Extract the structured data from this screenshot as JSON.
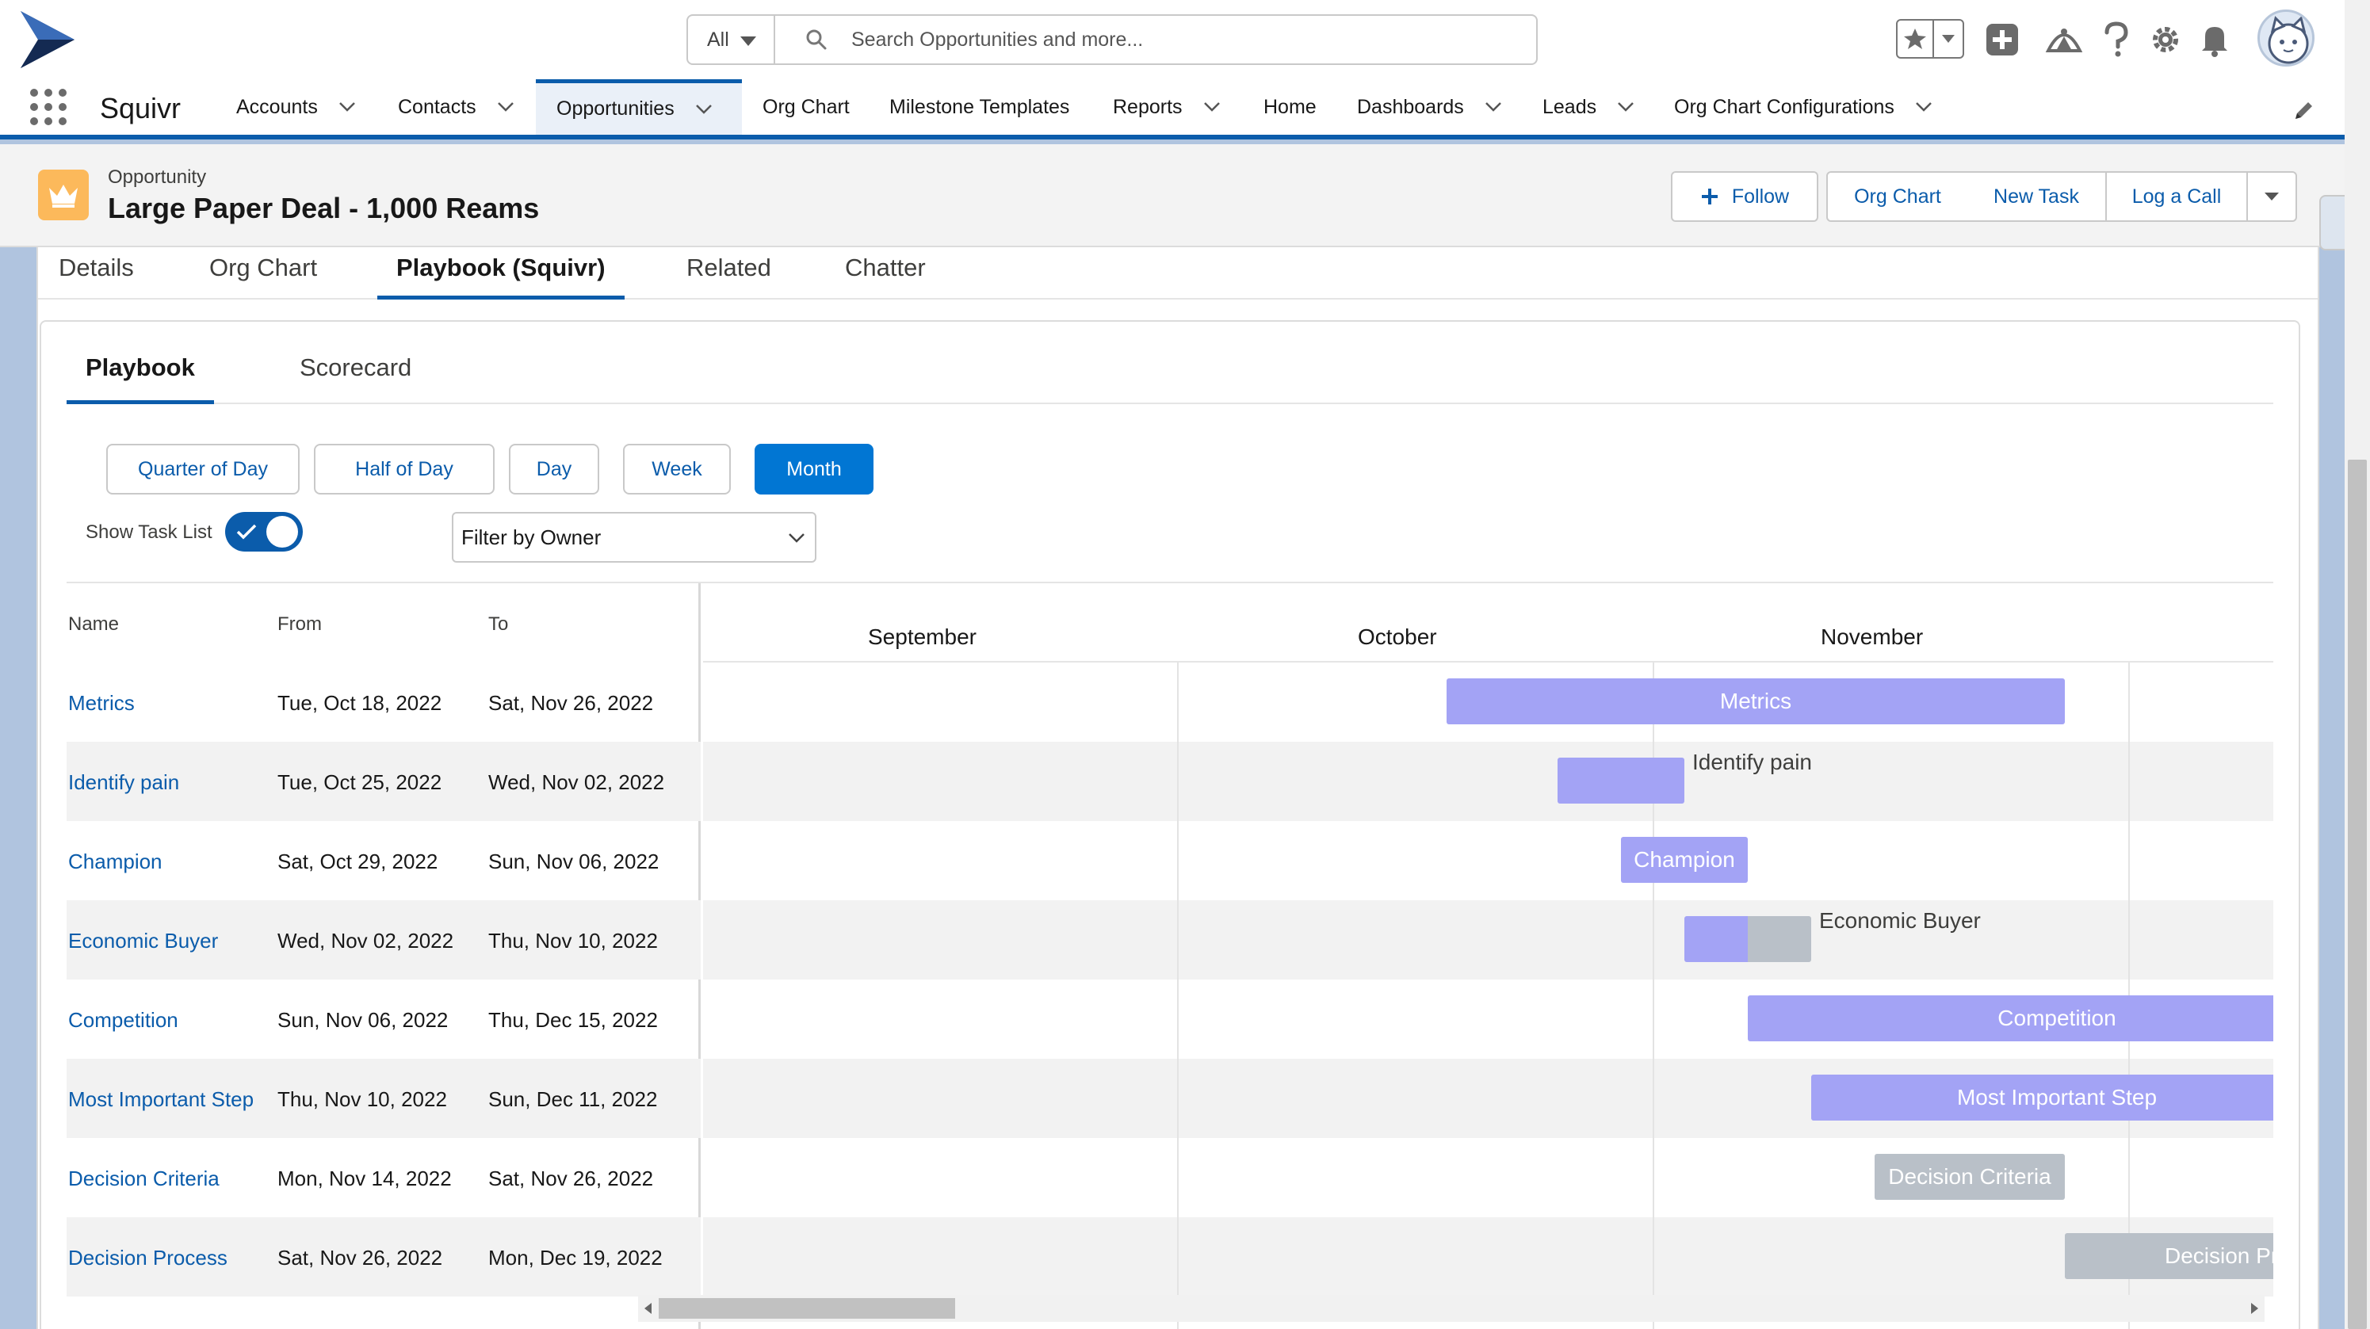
{
  "search": {
    "scope": "All",
    "placeholder": "Search Opportunities and more..."
  },
  "header_icons": [
    "star-icon",
    "add-icon",
    "trailhead-icon",
    "help-icon",
    "setup-gear-icon",
    "notification-bell-icon"
  ],
  "app": {
    "name": "Squivr",
    "nav": [
      {
        "label": "Accounts",
        "dropdown": true
      },
      {
        "label": "Contacts",
        "dropdown": true
      },
      {
        "label": "Opportunities",
        "dropdown": true,
        "active": true
      },
      {
        "label": "Org Chart",
        "dropdown": false
      },
      {
        "label": "Milestone Templates",
        "dropdown": false
      },
      {
        "label": "Reports",
        "dropdown": true
      },
      {
        "label": "Home",
        "dropdown": false
      },
      {
        "label": "Dashboards",
        "dropdown": true
      },
      {
        "label": "Leads",
        "dropdown": true
      },
      {
        "label": "Org Chart Configurations",
        "dropdown": true
      }
    ]
  },
  "record": {
    "type": "Opportunity",
    "title": "Large Paper Deal - 1,000 Reams",
    "icon_color": "#fcb95b",
    "actions": {
      "follow": "Follow",
      "org_chart": "Org Chart",
      "new_task": "New Task",
      "log_call": "Log a Call"
    }
  },
  "record_tabs": [
    "Details",
    "Org Chart",
    "Playbook (Squivr)",
    "Related",
    "Chatter"
  ],
  "record_tab_active": "Playbook (Squivr)",
  "sub_tabs": [
    "Playbook",
    "Scorecard"
  ],
  "sub_tab_active": "Playbook",
  "zoom_levels": [
    "Quarter of Day",
    "Half of Day",
    "Day",
    "Week",
    "Month"
  ],
  "zoom_active": "Month",
  "task_list": {
    "label": "Show Task List",
    "enabled": true
  },
  "owner_filter": {
    "placeholder": "Filter by Owner"
  },
  "gantt": {
    "columns": {
      "name": "Name",
      "from": "From",
      "to": "To"
    },
    "months": [
      "September",
      "October",
      "November"
    ],
    "tasks": [
      {
        "name": "Metrics",
        "from": "Tue, Oct 18, 2022",
        "to": "Sat, Nov 26, 2022",
        "progress": 1.0,
        "label_outside": false,
        "color": "#a3a3f5"
      },
      {
        "name": "Identify pain",
        "from": "Tue, Oct 25, 2022",
        "to": "Wed, Nov 02, 2022",
        "progress": 1.0,
        "label_outside": true,
        "color": "#a3a3f5"
      },
      {
        "name": "Champion",
        "from": "Sat, Oct 29, 2022",
        "to": "Sun, Nov 06, 2022",
        "progress": 1.0,
        "label_outside": false,
        "color": "#a3a3f5"
      },
      {
        "name": "Economic Buyer",
        "from": "Wed, Nov 02, 2022",
        "to": "Thu, Nov 10, 2022",
        "progress": 0.5,
        "label_outside": true,
        "color": "#a3a3f5"
      },
      {
        "name": "Competition",
        "from": "Sun, Nov 06, 2022",
        "to": "Thu, Dec 15, 2022",
        "progress": 1.0,
        "label_outside": false,
        "color": "#a3a3f5"
      },
      {
        "name": "Most Important Step",
        "from": "Thu, Nov 10, 2022",
        "to": "Sun, Dec 11, 2022",
        "progress": 1.0,
        "label_outside": false,
        "color": "#a3a3f5"
      },
      {
        "name": "Decision Criteria",
        "from": "Mon, Nov 14, 2022",
        "to": "Sat, Nov 26, 2022",
        "progress": 0.0,
        "label_outside": false,
        "color": "#b9c0c8"
      },
      {
        "name": "Decision Process",
        "from": "Sat, Nov 26, 2022",
        "to": "Mon, Dec 19, 2022",
        "progress": 0.0,
        "label_outside": false,
        "color": "#b9c0c8"
      }
    ]
  },
  "colors": {
    "brand": "#0b5cab",
    "active_button": "#0176d3",
    "bar_planned": "#a3a3f5",
    "bar_not_started": "#b9c0c8"
  }
}
